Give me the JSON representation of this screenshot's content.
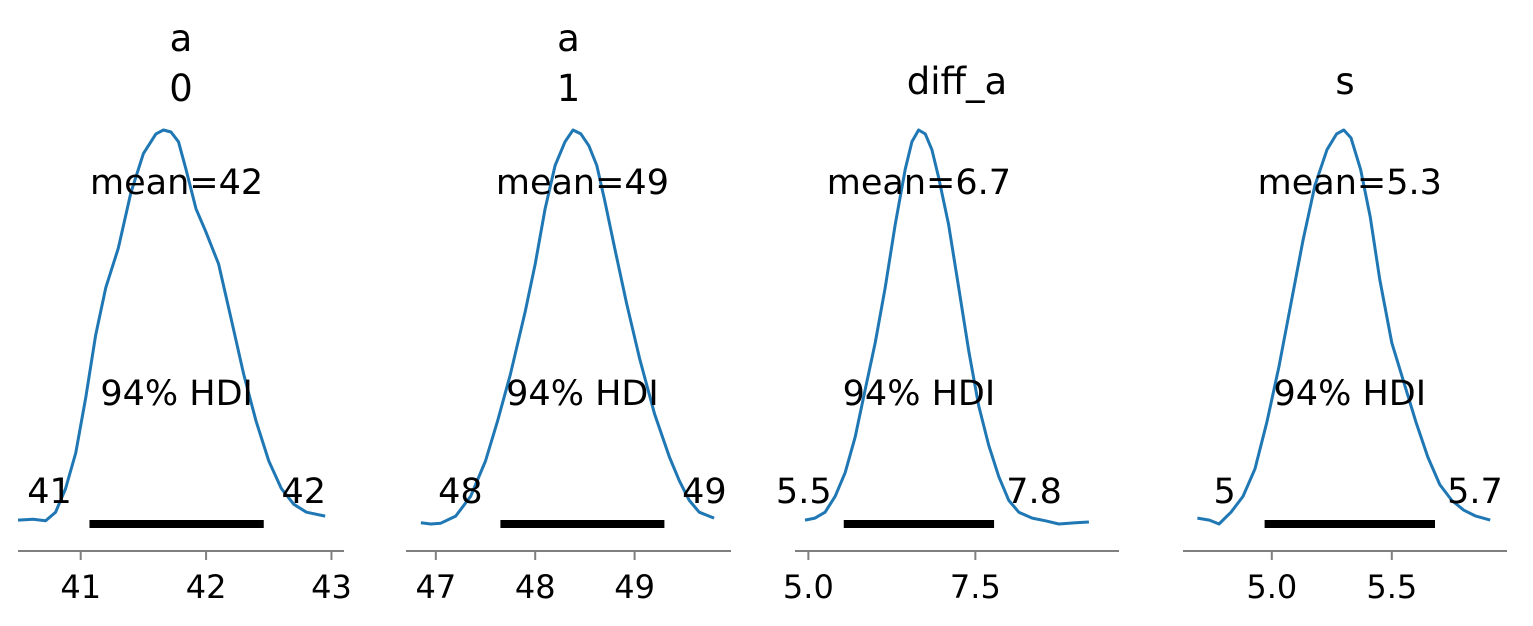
{
  "chart_data": [
    {
      "type": "area",
      "title_lines": [
        "a",
        "0"
      ],
      "mean_label": "mean=42",
      "hdi_label": "94% HDI",
      "hdi_low_label": "41",
      "hdi_high_label": "42",
      "hdi": [
        41.07,
        42.46
      ],
      "xlim": [
        40.5,
        43.1
      ],
      "xticks": [
        41,
        42,
        43
      ],
      "xtick_labels": [
        "41",
        "42",
        "43"
      ],
      "x": [
        40.5,
        40.62,
        40.72,
        40.8,
        40.88,
        40.96,
        41.04,
        41.12,
        41.2,
        41.3,
        41.4,
        41.5,
        41.6,
        41.66,
        41.72,
        41.78,
        41.84,
        41.92,
        42.0,
        42.1,
        42.2,
        42.3,
        42.4,
        42.5,
        42.6,
        42.7,
        42.8,
        42.95
      ],
      "density": [
        0.01,
        0.012,
        0.008,
        0.03,
        0.09,
        0.18,
        0.32,
        0.48,
        0.6,
        0.7,
        0.84,
        0.94,
        0.99,
        1.0,
        0.995,
        0.97,
        0.9,
        0.8,
        0.74,
        0.66,
        0.52,
        0.38,
        0.26,
        0.16,
        0.09,
        0.05,
        0.03,
        0.02
      ]
    },
    {
      "type": "area",
      "title_lines": [
        "a",
        "1"
      ],
      "mean_label": "mean=49",
      "hdi_label": "94% HDI",
      "hdi_low_label": "48",
      "hdi_high_label": "49",
      "hdi": [
        47.65,
        49.3
      ],
      "xlim": [
        46.7,
        49.97
      ],
      "xticks": [
        47,
        48,
        49
      ],
      "xtick_labels": [
        "47",
        "48",
        "49"
      ],
      "x": [
        46.85,
        46.95,
        47.05,
        47.2,
        47.35,
        47.5,
        47.62,
        47.75,
        47.9,
        48.0,
        48.1,
        48.2,
        48.3,
        48.38,
        48.46,
        48.54,
        48.62,
        48.7,
        48.8,
        48.92,
        49.05,
        49.2,
        49.35,
        49.45,
        49.55,
        49.65,
        49.8
      ],
      "density": [
        0.003,
        0.0,
        0.002,
        0.02,
        0.07,
        0.16,
        0.26,
        0.38,
        0.54,
        0.66,
        0.8,
        0.91,
        0.97,
        1.0,
        0.99,
        0.96,
        0.91,
        0.82,
        0.7,
        0.56,
        0.42,
        0.28,
        0.17,
        0.11,
        0.06,
        0.03,
        0.015
      ]
    },
    {
      "type": "area",
      "title_lines": [
        "diff_a"
      ],
      "mean_label": "mean=6.7",
      "hdi_label": "94% HDI",
      "hdi_low_label": "5.5",
      "hdi_high_label": "7.8",
      "hdi": [
        5.53,
        7.78
      ],
      "xlim": [
        4.8,
        9.65
      ],
      "xticks": [
        5.0,
        7.5
      ],
      "xtick_labels": [
        "5.0",
        "7.5"
      ],
      "x": [
        4.95,
        5.1,
        5.25,
        5.4,
        5.55,
        5.7,
        5.85,
        6.0,
        6.15,
        6.3,
        6.45,
        6.55,
        6.65,
        6.75,
        6.85,
        6.95,
        7.1,
        7.25,
        7.4,
        7.55,
        7.7,
        7.85,
        8.0,
        8.15,
        8.35,
        8.55,
        8.75,
        9.0,
        9.2
      ],
      "density": [
        0.01,
        0.015,
        0.03,
        0.07,
        0.13,
        0.22,
        0.34,
        0.46,
        0.6,
        0.76,
        0.9,
        0.97,
        1.0,
        0.99,
        0.95,
        0.88,
        0.76,
        0.6,
        0.44,
        0.3,
        0.2,
        0.12,
        0.06,
        0.03,
        0.015,
        0.008,
        0.0,
        0.003,
        0.005
      ]
    },
    {
      "type": "area",
      "title_lines": [
        "s"
      ],
      "mean_label": "mean=5.3",
      "hdi_label": "94% HDI",
      "hdi_low_label": "5",
      "hdi_high_label": "5.7",
      "hdi": [
        4.97,
        5.68
      ],
      "xlim": [
        4.63,
        5.98
      ],
      "xticks": [
        5.0,
        5.5
      ],
      "xtick_labels": [
        "5.0",
        "5.5"
      ],
      "x": [
        4.69,
        4.74,
        4.78,
        4.83,
        4.88,
        4.93,
        4.98,
        5.03,
        5.08,
        5.13,
        5.18,
        5.23,
        5.27,
        5.3,
        5.33,
        5.37,
        5.41,
        5.45,
        5.5,
        5.55,
        5.6,
        5.65,
        5.7,
        5.75,
        5.8,
        5.85,
        5.91
      ],
      "density": [
        0.015,
        0.01,
        0.0,
        0.03,
        0.07,
        0.14,
        0.26,
        0.4,
        0.56,
        0.72,
        0.86,
        0.95,
        0.99,
        1.0,
        0.98,
        0.9,
        0.78,
        0.62,
        0.46,
        0.36,
        0.26,
        0.17,
        0.1,
        0.06,
        0.035,
        0.02,
        0.01
      ]
    }
  ],
  "colors": {
    "kde_line": "#1f77b4",
    "hdi_bar": "#000000",
    "axis": "#7f7f7f",
    "text": "#000000"
  }
}
